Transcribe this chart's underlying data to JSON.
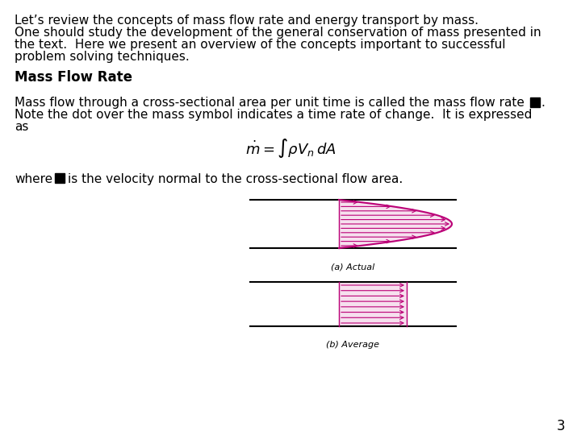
{
  "bg_color": "#ffffff",
  "text_color": "#000000",
  "arrow_color": "#bb0077",
  "intro_text_line1": "Let’s review the concepts of mass flow rate and energy transport by mass.",
  "intro_text_line2": "One should study the development of the general conservation of mass presented in",
  "intro_text_line3": "the text.  Here we present an overview of the concepts important to successful",
  "intro_text_line4": "problem solving techniques.",
  "section_header": "Mass Flow Rate",
  "body_line1": "Mass flow through a cross-sectional area per unit time is called the mass flow rate",
  "body_line2": "Note the dot over the mass symbol indicates a time rate of change.  It is expressed",
  "body_line3": "as",
  "where_pre": "where",
  "where_post": "is the velocity normal to the cross-sectional flow area.",
  "caption_actual": "(a) Actual",
  "caption_average": "(b) Average",
  "page_number": "3",
  "font_size_body": 11,
  "font_size_header": 12,
  "font_size_caption": 8,
  "font_size_equation": 13,
  "font_size_page": 12
}
